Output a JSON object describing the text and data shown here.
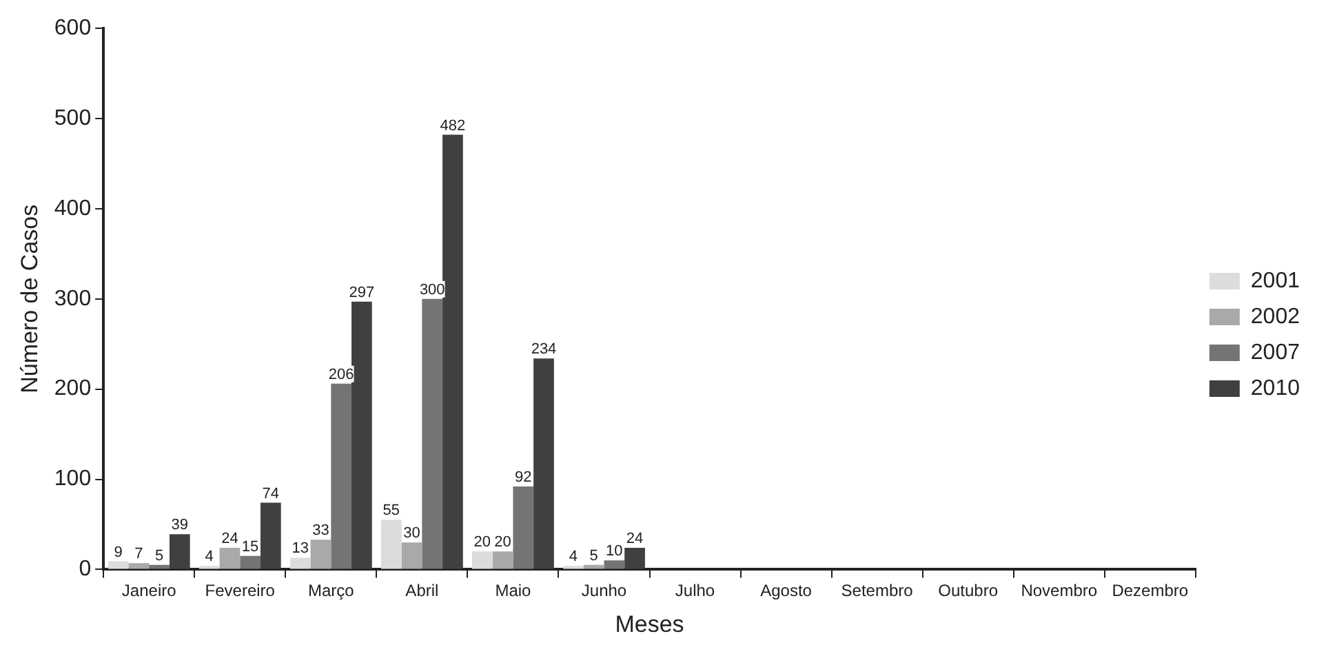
{
  "chart_data": {
    "type": "bar",
    "xlabel": "Meses",
    "ylabel": "Número de Casos",
    "categories": [
      "Janeiro",
      "Fevereiro",
      "Março",
      "Abril",
      "Maio",
      "Junho",
      "Julho",
      "Agosto",
      "Setembro",
      "Outubro",
      "Novembro",
      "Dezembro"
    ],
    "series": [
      {
        "name": "2001",
        "color": "#dcdcdc",
        "values": [
          9,
          4,
          13,
          55,
          20,
          4,
          null,
          null,
          null,
          null,
          null,
          null
        ]
      },
      {
        "name": "2002",
        "color": "#a9a9a9",
        "values": [
          7,
          24,
          33,
          30,
          20,
          5,
          null,
          null,
          null,
          null,
          null,
          null
        ]
      },
      {
        "name": "2007",
        "color": "#747474",
        "values": [
          5,
          15,
          206,
          300,
          92,
          10,
          null,
          null,
          null,
          null,
          null,
          null
        ]
      },
      {
        "name": "2010",
        "color": "#404040",
        "values": [
          39,
          74,
          297,
          482,
          234,
          24,
          null,
          null,
          null,
          null,
          null,
          null
        ]
      }
    ],
    "ylim": [
      0,
      600
    ],
    "yticks": [
      0,
      100,
      200,
      300,
      400,
      500,
      600
    ],
    "grid": false,
    "legend": "right",
    "data_labels": true
  }
}
